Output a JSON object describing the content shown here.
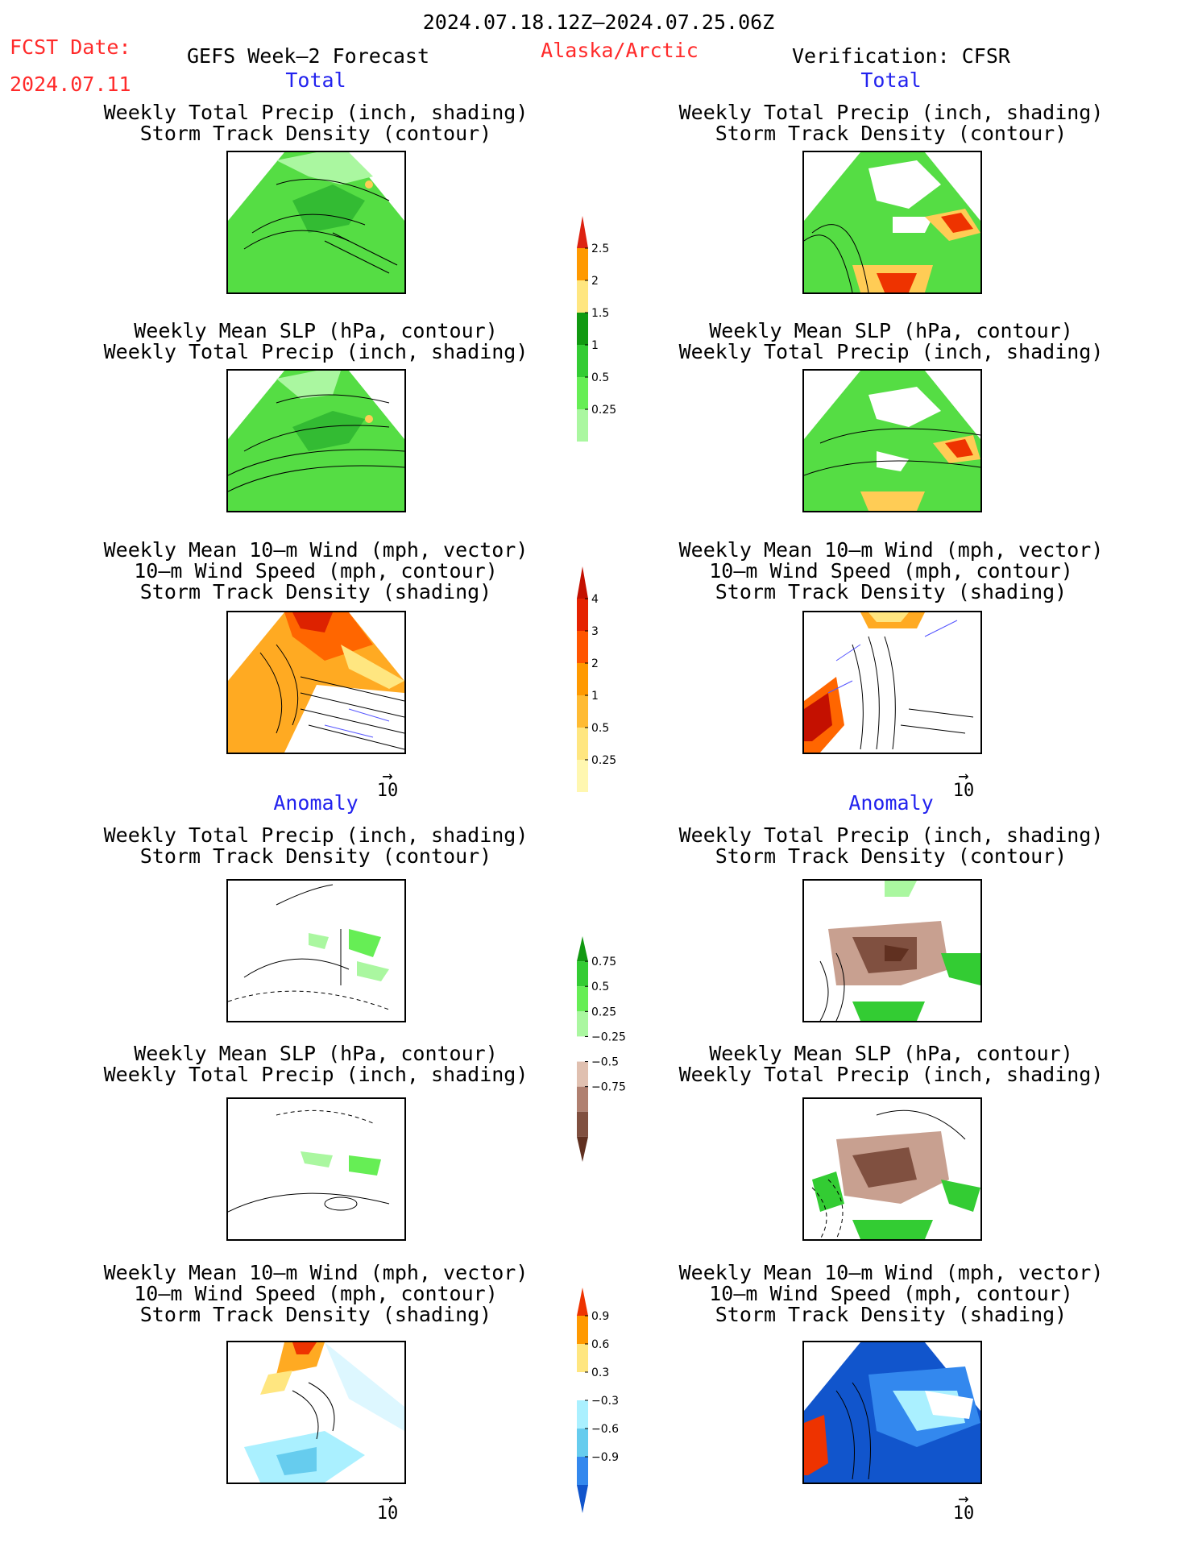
{
  "header": {
    "valid_period": "2024.07.18.12Z–2024.07.25.06Z",
    "fcst_label": "FCST Date:",
    "fcst_date": "2024.07.11",
    "model": "GEFS Week–2 Forecast",
    "region": "Alaska/Arctic",
    "verification": "Verification: CFSR"
  },
  "sections": {
    "total": "Total",
    "anomaly": "Anomaly"
  },
  "panel_titles": {
    "precip_track": [
      "Weekly Total Precip (inch, shading)",
      "Storm Track Density (contour)"
    ],
    "slp_precip": [
      "Weekly Mean SLP (hPa, contour)",
      "Weekly Total Precip (inch, shading)"
    ],
    "wind_track": [
      "Weekly Mean 10–m Wind (mph, vector)",
      "10–m Wind Speed (mph, contour)",
      "Storm Track Density (shading)"
    ]
  },
  "vector_ref": "10",
  "colorbars": {
    "precip_total": {
      "ticks": [
        "2.5",
        "2",
        "1.5",
        "1",
        "0.5",
        "0.25"
      ],
      "colors": [
        "#dd2211",
        "#ff9900",
        "#ffe680",
        "#119911",
        "#33cc33",
        "#66ee55",
        "#aaf7a0"
      ]
    },
    "track_total": {
      "ticks": [
        "4",
        "3",
        "2",
        "1",
        "0.5",
        "0.25"
      ],
      "colors": [
        "#c41000",
        "#e52200",
        "#ff5500",
        "#ff9900",
        "#ffbb33",
        "#ffe680",
        "#fff7b0"
      ]
    },
    "precip_anom": {
      "ticks": [
        "0.75",
        "0.5",
        "0.25",
        "−0.25",
        "−0.5",
        "−0.75"
      ],
      "colors": [
        "#119911",
        "#33cc33",
        "#66ee55",
        "#aaf7a0",
        "#ffffff",
        "#e0c0b0",
        "#b08070",
        "#805040",
        "#603020"
      ]
    },
    "track_anom": {
      "ticks": [
        "0.9",
        "0.6",
        "0.3",
        "−0.3",
        "−0.6",
        "−0.9"
      ],
      "colors": [
        "#ee3300",
        "#ff9900",
        "#ffe680",
        "#ffffff",
        "#aaf0ff",
        "#66ccee",
        "#3388ee",
        "#1155cc"
      ]
    }
  }
}
